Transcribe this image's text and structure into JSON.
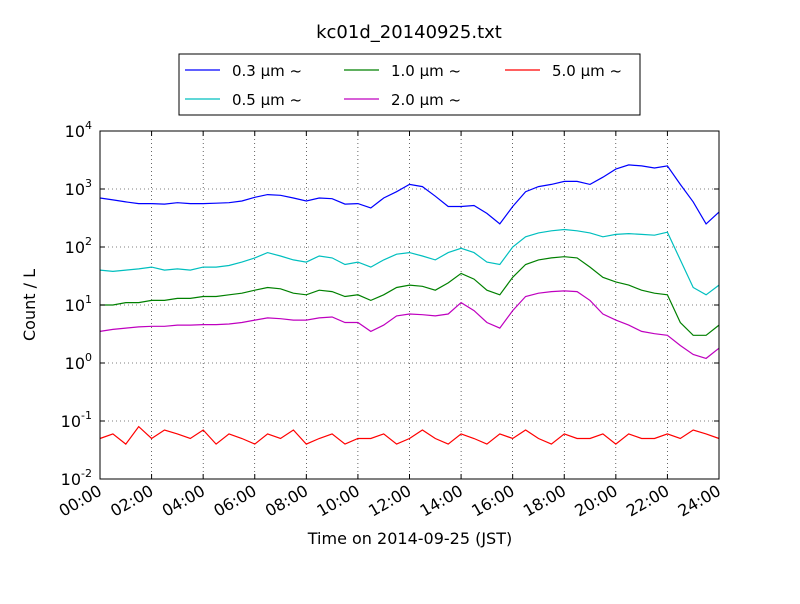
{
  "chart_data": {
    "type": "line",
    "title": "kc01d_20140925.txt",
    "xlabel": "Time on 2014-09-25 (JST)",
    "ylabel": "Count / L",
    "y_scale": "log",
    "ylim": [
      0.01,
      10000
    ],
    "xlim": [
      "00:00",
      "24:00"
    ],
    "x_ticks": [
      "00:00",
      "02:00",
      "04:00",
      "06:00",
      "08:00",
      "10:00",
      "12:00",
      "14:00",
      "16:00",
      "18:00",
      "20:00",
      "22:00",
      "24:00"
    ],
    "y_ticks": [
      {
        "value": 0.01,
        "base": "10",
        "exp": "-2"
      },
      {
        "value": 0.1,
        "base": "10",
        "exp": "-1"
      },
      {
        "value": 1,
        "base": "10",
        "exp": "0"
      },
      {
        "value": 10,
        "base": "10",
        "exp": "1"
      },
      {
        "value": 100,
        "base": "10",
        "exp": "2"
      },
      {
        "value": 1000,
        "base": "10",
        "exp": "3"
      },
      {
        "value": 10000,
        "base": "10",
        "exp": "4"
      }
    ],
    "grid": true,
    "legend_position": "top-center",
    "x_hours": [
      0,
      0.5,
      1,
      1.5,
      2,
      2.5,
      3,
      3.5,
      4,
      4.5,
      5,
      5.5,
      6,
      6.5,
      7,
      7.5,
      8,
      8.5,
      9,
      9.5,
      10,
      10.5,
      11,
      11.5,
      12,
      12.5,
      13,
      13.5,
      14,
      14.5,
      15,
      15.5,
      16,
      16.5,
      17,
      17.5,
      18,
      18.5,
      19,
      19.5,
      20,
      20.5,
      21,
      21.5,
      22,
      22.5,
      23,
      23.5,
      24
    ],
    "series": [
      {
        "name": "0.3 μm ~",
        "color": "#0000ff",
        "values": [
          700,
          650,
          600,
          560,
          560,
          550,
          580,
          560,
          560,
          570,
          580,
          620,
          720,
          800,
          780,
          700,
          620,
          700,
          680,
          550,
          560,
          470,
          700,
          900,
          1200,
          1100,
          750,
          500,
          500,
          520,
          380,
          250,
          500,
          900,
          1100,
          1200,
          1350,
          1350,
          1200,
          1600,
          2200,
          2600,
          2500,
          2300,
          2500,
          1200,
          600,
          250,
          400
        ]
      },
      {
        "name": "0.5 μm ~",
        "color": "#00bfbf",
        "values": [
          40,
          38,
          40,
          42,
          45,
          40,
          42,
          40,
          45,
          45,
          48,
          55,
          65,
          80,
          70,
          60,
          55,
          70,
          65,
          50,
          55,
          45,
          60,
          75,
          80,
          70,
          60,
          80,
          95,
          80,
          55,
          50,
          100,
          150,
          175,
          190,
          200,
          190,
          175,
          150,
          165,
          170,
          165,
          160,
          180,
          60,
          20,
          15,
          22
        ]
      },
      {
        "name": "1.0 μm ~",
        "color": "#008000",
        "values": [
          10,
          10,
          11,
          11,
          12,
          12,
          13,
          13,
          14,
          14,
          15,
          16,
          18,
          20,
          19,
          16,
          15,
          18,
          17,
          14,
          15,
          12,
          15,
          20,
          22,
          21,
          18,
          24,
          35,
          28,
          18,
          15,
          30,
          50,
          60,
          65,
          68,
          65,
          45,
          30,
          25,
          22,
          18,
          16,
          15,
          5,
          3,
          3,
          4.5
        ]
      },
      {
        "name": "2.0 μm ~",
        "color": "#bf00bf",
        "values": [
          3.5,
          3.8,
          4,
          4.2,
          4.3,
          4.3,
          4.5,
          4.5,
          4.6,
          4.6,
          4.7,
          5,
          5.5,
          6,
          5.8,
          5.5,
          5.5,
          6,
          6.2,
          5,
          5,
          3.5,
          4.5,
          6.5,
          7,
          6.8,
          6.5,
          7,
          11,
          8,
          5,
          4,
          8,
          14,
          16,
          17,
          17.5,
          17,
          12,
          7,
          5.5,
          4.5,
          3.5,
          3.2,
          3,
          2,
          1.4,
          1.2,
          1.8
        ]
      },
      {
        "name": "5.0 μm ~",
        "color": "#ff0000",
        "values": [
          0.05,
          0.06,
          0.04,
          0.08,
          0.05,
          0.07,
          0.06,
          0.05,
          0.07,
          0.04,
          0.06,
          0.05,
          0.04,
          0.06,
          0.05,
          0.07,
          0.04,
          0.05,
          0.06,
          0.04,
          0.05,
          0.05,
          0.06,
          0.04,
          0.05,
          0.07,
          0.05,
          0.04,
          0.06,
          0.05,
          0.04,
          0.06,
          0.05,
          0.07,
          0.05,
          0.04,
          0.06,
          0.05,
          0.05,
          0.06,
          0.04,
          0.06,
          0.05,
          0.05,
          0.06,
          0.05,
          0.07,
          0.06,
          0.05
        ]
      }
    ]
  }
}
